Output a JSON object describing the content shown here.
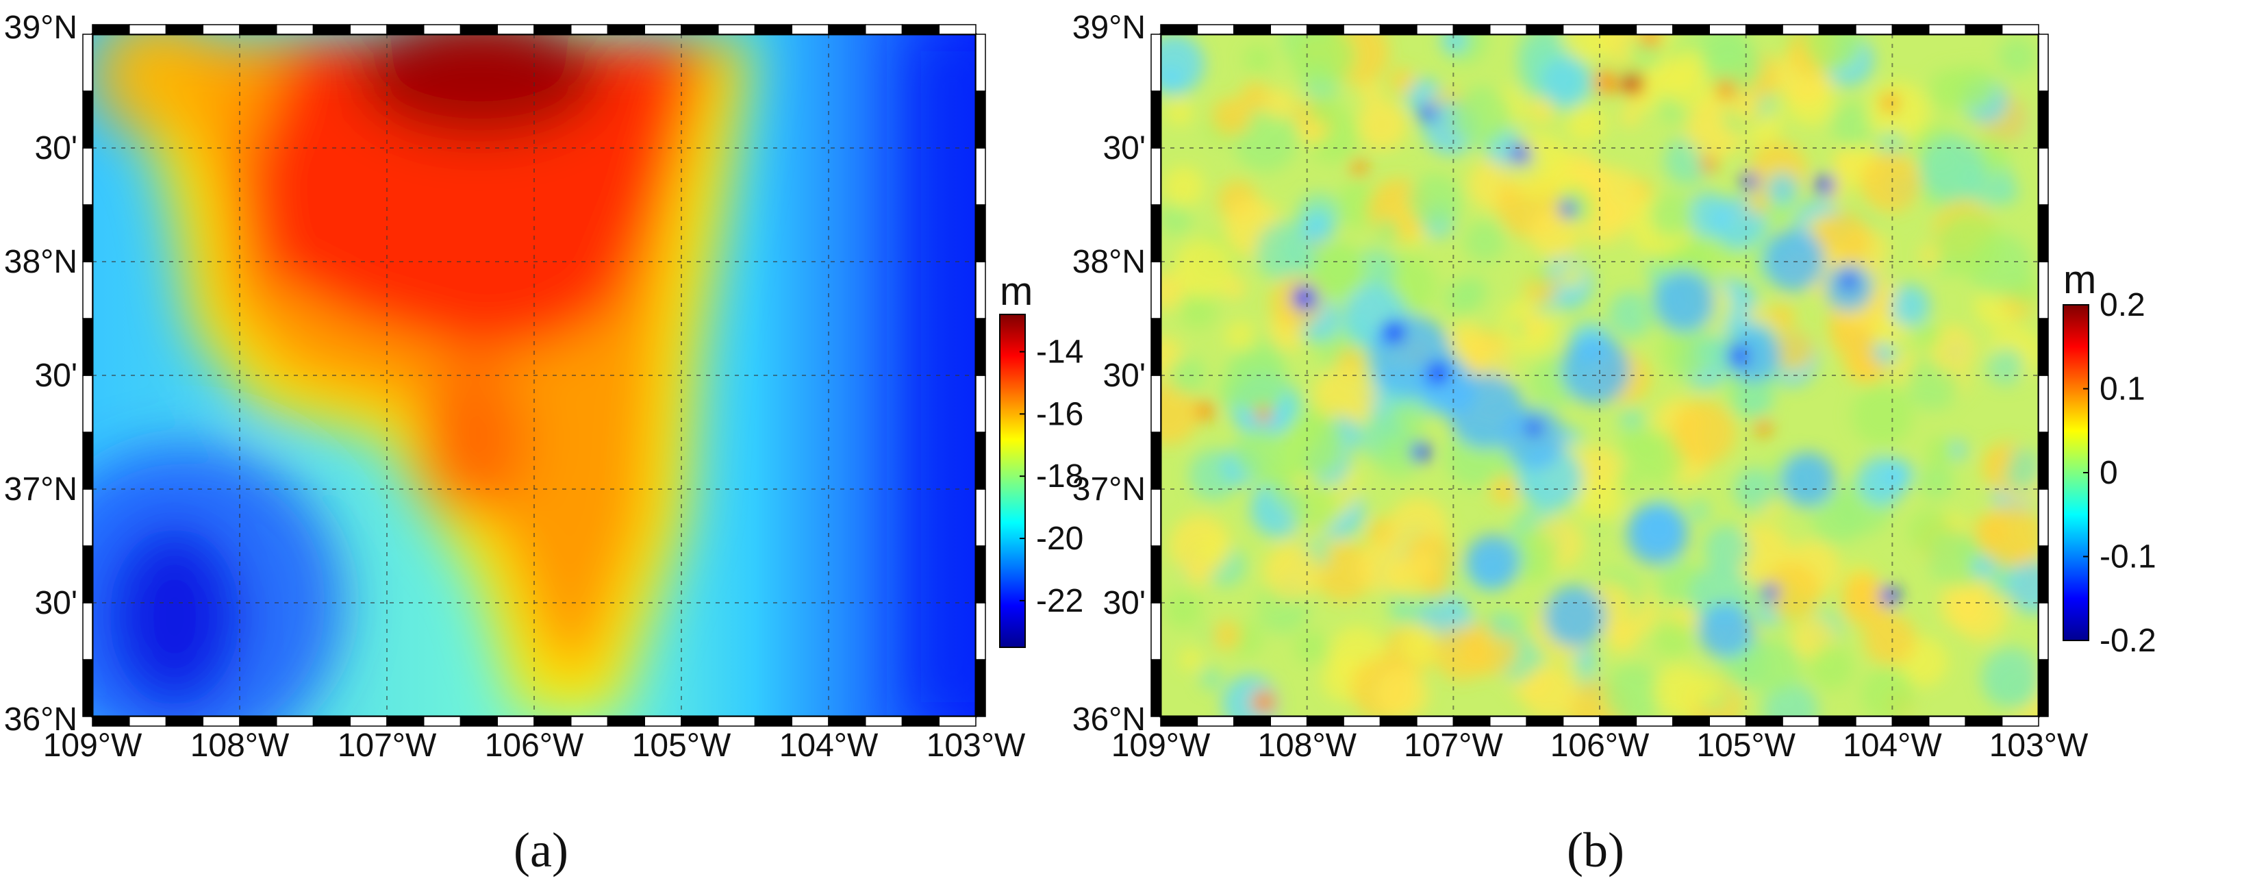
{
  "colors": {
    "jet": [
      "#00008f",
      "#0000ff",
      "#0080ff",
      "#00ffff",
      "#80ff80",
      "#ffff00",
      "#ff8000",
      "#ff0000",
      "#800000"
    ]
  },
  "maps": [
    {
      "id": "a",
      "panel_label": "(a)",
      "colorbar": {
        "unit": "m",
        "min": -23.5,
        "max": -12.8,
        "ticks": [
          {
            "value": -14,
            "label": "-14"
          },
          {
            "value": -16,
            "label": "-16"
          },
          {
            "value": -18,
            "label": "-18"
          },
          {
            "value": -20,
            "label": "-20"
          },
          {
            "value": -22,
            "label": "-22"
          }
        ]
      }
    },
    {
      "id": "b",
      "panel_label": "(b)",
      "colorbar": {
        "unit": "m",
        "min": -0.2,
        "max": 0.2,
        "ticks": [
          {
            "value": 0.2,
            "label": "0.2"
          },
          {
            "value": 0.1,
            "label": "0.1"
          },
          {
            "value": 0,
            "label": "0"
          },
          {
            "value": -0.1,
            "label": "-0.1"
          },
          {
            "value": -0.2,
            "label": "-0.2"
          }
        ]
      }
    }
  ],
  "lon_ticks": [
    {
      "value": -109,
      "label": "109°W"
    },
    {
      "value": -108,
      "label": "108°W"
    },
    {
      "value": -107,
      "label": "107°W"
    },
    {
      "value": -106,
      "label": "106°W"
    },
    {
      "value": -105,
      "label": "105°W"
    },
    {
      "value": -104,
      "label": "104°W"
    },
    {
      "value": -103,
      "label": "103°W"
    }
  ],
  "lat_ticks": [
    {
      "value": 39,
      "label": "39°N"
    },
    {
      "value": 38.5,
      "label": "30'"
    },
    {
      "value": 38,
      "label": "38°N"
    },
    {
      "value": 37.5,
      "label": "30'"
    },
    {
      "value": 37,
      "label": "37°N"
    },
    {
      "value": 36.5,
      "label": "30'"
    },
    {
      "value": 36,
      "label": "36°N"
    }
  ],
  "lon_range": [
    -109,
    -103
  ],
  "lat_range": [
    36,
    39
  ]
}
